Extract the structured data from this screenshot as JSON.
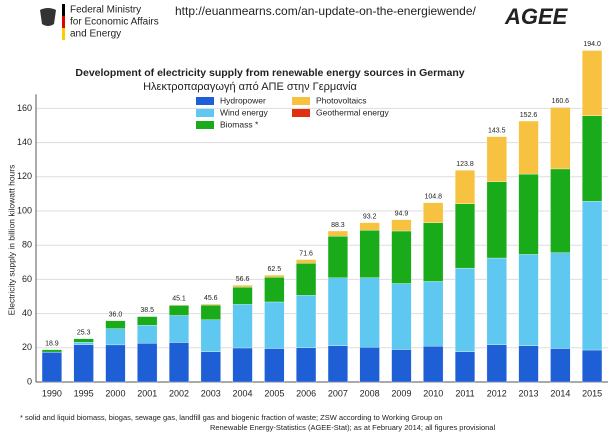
{
  "header": {
    "ministry": [
      "Federal Ministry",
      "for Economic Affairs",
      "and Energy"
    ],
    "url": "http://euanmearns.com/an-update-on-the-energiewende/",
    "logo": "AGEE"
  },
  "chart_data": {
    "type": "stacked_bar",
    "title": "Development of electricity supply from renewable energy sources in Germany",
    "subtitle": "Ηλεκτροπαραγωγή από ΑΠΕ στην Γερμανία",
    "y_label": "Electricity supply in billion kilowatt hours",
    "categories": [
      "1990",
      "1995",
      "2000",
      "2001",
      "2002",
      "2003",
      "2004",
      "2005",
      "2006",
      "2007",
      "2008",
      "2009",
      "2010",
      "2011",
      "2012",
      "2013",
      "2014",
      "2015"
    ],
    "series": [
      {
        "name": "Hydropower",
        "color": "#1f5fd6",
        "values": [
          17.4,
          21.8,
          21.7,
          22.7,
          23.1,
          17.7,
          19.9,
          19.6,
          20.0,
          21.2,
          20.4,
          19.0,
          21.0,
          17.7,
          21.8,
          21.2,
          19.6,
          18.7
        ]
      },
      {
        "name": "Wind energy",
        "color": "#5ec8f0",
        "values": [
          0.1,
          1.5,
          9.5,
          10.5,
          15.8,
          18.7,
          25.5,
          27.2,
          30.7,
          39.7,
          40.6,
          38.6,
          37.8,
          48.9,
          50.7,
          53.4,
          56.0,
          87.0
        ]
      },
      {
        "name": "Biomass *",
        "color": "#1aab1a",
        "values": [
          1.4,
          2.0,
          4.7,
          5.1,
          5.9,
          8.6,
          10.1,
          14.4,
          18.7,
          24.4,
          27.8,
          30.7,
          34.3,
          37.6,
          44.6,
          47.0,
          49.0,
          50.0
        ]
      },
      {
        "name": "Photovoltaics",
        "color": "#f7c23f",
        "values": [
          0,
          0,
          0.1,
          0.2,
          0.3,
          0.6,
          1.1,
          1.3,
          2.2,
          3.0,
          4.4,
          6.6,
          11.7,
          19.6,
          26.4,
          31.0,
          35.9,
          38.2
        ]
      },
      {
        "name": "Geothermal energy",
        "color": "#e03010",
        "values": [
          0,
          0,
          0,
          0,
          0,
          0,
          0,
          0,
          0,
          0,
          0,
          0,
          0,
          0,
          0,
          0,
          0.1,
          0.1
        ]
      }
    ],
    "total_labels": [
      "18.9",
      "25.3",
      "36.0",
      "38.5",
      "45.1",
      "45.6",
      "56.6",
      "62.5",
      "71.6",
      "88.3",
      "93.2",
      "94.9",
      "104.8",
      "123.8",
      "143.5",
      "152.6",
      "160.6",
      "194.0"
    ],
    "ylim": [
      0,
      200
    ],
    "yticks": [
      0,
      20,
      40,
      60,
      80,
      100,
      120,
      140,
      160
    ],
    "grid": true,
    "footnote": [
      "* solid and liquid biomass, biogas, sewage gas, landfill gas and biogenic fraction of waste; ZSW according to Working Group on",
      "Renewable Energy-Statistics (AGEE-Stat); as at February 2014; all figures provisional"
    ]
  }
}
